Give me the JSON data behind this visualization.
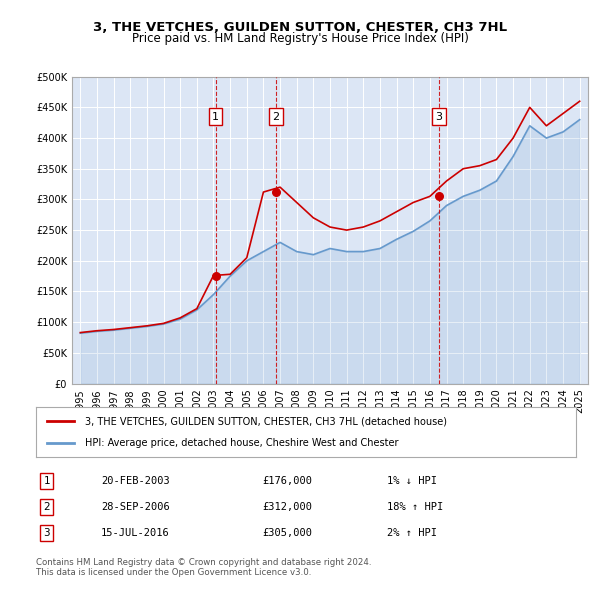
{
  "title": "3, THE VETCHES, GUILDEN SUTTON, CHESTER, CH3 7HL",
  "subtitle": "Price paid vs. HM Land Registry's House Price Index (HPI)",
  "ylabel": "",
  "background_color": "#dce6f5",
  "plot_bg": "#dce6f5",
  "ylim": [
    0,
    500000
  ],
  "yticks": [
    0,
    50000,
    100000,
    150000,
    200000,
    250000,
    300000,
    350000,
    400000,
    450000,
    500000
  ],
  "red_line_color": "#cc0000",
  "blue_line_color": "#6699cc",
  "sale_dates": [
    2003.13,
    2006.74,
    2016.54
  ],
  "sale_prices": [
    176000,
    312000,
    305000
  ],
  "sale_labels": [
    "1",
    "2",
    "3"
  ],
  "legend1": "3, THE VETCHES, GUILDEN SUTTON, CHESTER, CH3 7HL (detached house)",
  "legend2": "HPI: Average price, detached house, Cheshire West and Chester",
  "table": [
    {
      "num": "1",
      "date": "20-FEB-2003",
      "price": "£176,000",
      "hpi": "1% ↓ HPI"
    },
    {
      "num": "2",
      "date": "28-SEP-2006",
      "price": "£312,000",
      "hpi": "18% ↑ HPI"
    },
    {
      "num": "3",
      "date": "15-JUL-2016",
      "price": "£305,000",
      "hpi": "2% ↑ HPI"
    }
  ],
  "footer": "Contains HM Land Registry data © Crown copyright and database right 2024.\nThis data is licensed under the Open Government Licence v3.0.",
  "hpi_years": [
    1995,
    1996,
    1997,
    1998,
    1999,
    2000,
    2001,
    2002,
    2003,
    2004,
    2005,
    2006,
    2007,
    2008,
    2009,
    2010,
    2011,
    2012,
    2013,
    2014,
    2015,
    2016,
    2017,
    2018,
    2019,
    2020,
    2021,
    2022,
    2023,
    2024,
    2025
  ],
  "hpi_values": [
    82000,
    85000,
    87000,
    90000,
    93000,
    97000,
    105000,
    120000,
    145000,
    175000,
    200000,
    215000,
    230000,
    215000,
    210000,
    220000,
    215000,
    215000,
    220000,
    235000,
    248000,
    265000,
    290000,
    305000,
    315000,
    330000,
    370000,
    420000,
    400000,
    410000,
    430000
  ],
  "red_years": [
    1995,
    1996,
    1997,
    1998,
    1999,
    2000,
    2001,
    2002,
    2003,
    2004,
    2005,
    2006,
    2007,
    2008,
    2009,
    2010,
    2011,
    2012,
    2013,
    2014,
    2015,
    2016,
    2017,
    2018,
    2019,
    2020,
    2021,
    2022,
    2023,
    2024,
    2025
  ],
  "red_values": [
    83000,
    86000,
    88000,
    91000,
    94000,
    98000,
    107000,
    122000,
    176000,
    178000,
    205000,
    312000,
    320000,
    295000,
    270000,
    255000,
    250000,
    255000,
    265000,
    280000,
    295000,
    305000,
    330000,
    350000,
    355000,
    365000,
    400000,
    450000,
    420000,
    440000,
    460000
  ]
}
